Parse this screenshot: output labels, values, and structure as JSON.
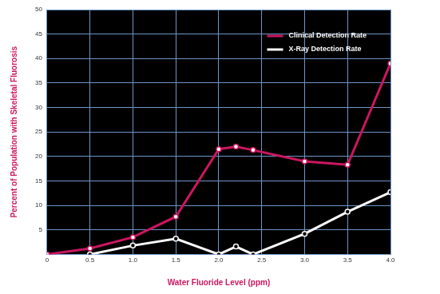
{
  "chart_data": {
    "type": "line",
    "x_label": "Water Fluoride Level (ppm)",
    "y_label": "Percent of Population with Skeletal Fluorosis",
    "series": [
      {
        "name": "Clinical Detection Rate",
        "color": "#cc1660",
        "marker": "circle",
        "x": [
          0,
          0.5,
          1.0,
          1.5,
          2.0,
          2.2,
          2.4,
          3.0,
          3.5,
          4.0
        ],
        "values": [
          0,
          1.2,
          3.5,
          7.7,
          21.5,
          22,
          21.3,
          19,
          18.3,
          39
        ]
      },
      {
        "name": "X-Ray Detection Rate",
        "color": "#ffffff",
        "marker": "circle",
        "x": [
          0.5,
          1.0,
          1.5,
          2.0,
          2.2,
          2.4,
          3.0,
          3.5,
          4.0
        ],
        "values": [
          0,
          1.8,
          3.2,
          0,
          1.6,
          0,
          4.2,
          8.7,
          12.7
        ]
      }
    ],
    "xlim": [
      0,
      4
    ],
    "xticks": [
      0,
      0.5,
      {
        "value": 1,
        "label": "1.0"
      },
      1.5,
      {
        "value": 2,
        "label": "2.0"
      },
      2.5,
      {
        "value": 3,
        "label": "3.0"
      },
      3.5,
      {
        "value": 4,
        "label": "4.0"
      }
    ],
    "ylim": [
      0,
      50
    ],
    "yticks": [
      5,
      10,
      15,
      20,
      25,
      30,
      35,
      40,
      45,
      50
    ],
    "grid": true,
    "legend": "upper right"
  }
}
